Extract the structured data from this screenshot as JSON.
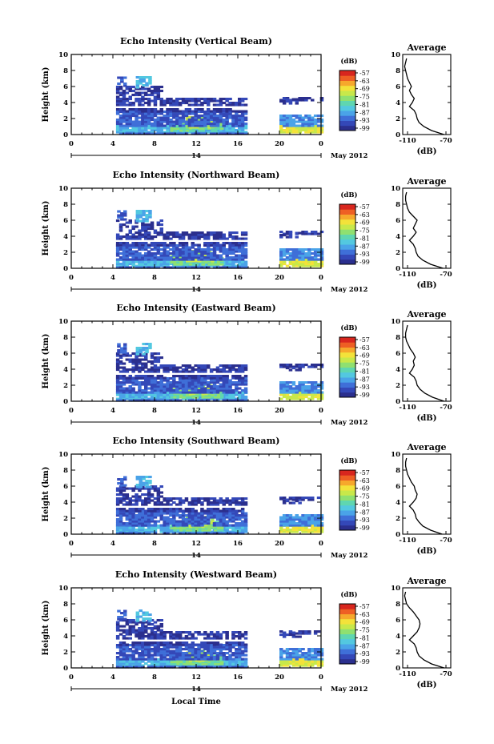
{
  "figure": {
    "x_axis_label": "Local Time",
    "date_label": "May 2012",
    "day_label": "14",
    "colorbar_unit": "(dB)",
    "average_title": "Average",
    "average_xlabel": "(dB)",
    "y_axis_label": "Height (km)"
  },
  "colors": {
    "scale": [
      "#2b2f8e",
      "#3448b8",
      "#3f6fd8",
      "#4aa3e8",
      "#53c8e0",
      "#5fd6b0",
      "#8fe070",
      "#c8e84a",
      "#f3e23a",
      "#f6a82c",
      "#ee5f24",
      "#d8261e"
    ]
  },
  "chart_data": [
    {
      "type": "heatmap",
      "title": "Echo Intensity (Vertical Beam)",
      "ylabel": "Height (km)",
      "xlim": [
        0,
        24
      ],
      "ylim": [
        0,
        10
      ],
      "x_ticks": [
        "0",
        "4",
        "8",
        "12",
        "16",
        "20",
        "0"
      ],
      "y_ticks": [
        "0",
        "2",
        "4",
        "6",
        "8",
        "10"
      ],
      "colorbar": {
        "ticks": [
          "-57",
          "-63",
          "-69",
          "-75",
          "-81",
          "-87",
          "-93",
          "-99"
        ]
      },
      "average": {
        "title": "Average",
        "xlabel": "(dB)",
        "x_ticks": [
          "-110",
          "-70"
        ],
        "xlim": [
          -115,
          -65
        ],
        "y_ticks": [
          "0",
          "2",
          "4",
          "6",
          "8",
          "10"
        ],
        "ylim": [
          0,
          10
        ],
        "heights": [
          0,
          0.5,
          1,
          1.5,
          2,
          2.5,
          3,
          3.5,
          4,
          4.5,
          5,
          5.5,
          6,
          6.5,
          7,
          7.5,
          8,
          8.5,
          9,
          9.5
        ],
        "values": [
          -72,
          -85,
          -93,
          -98,
          -100,
          -101,
          -103,
          -108,
          -105,
          -103,
          -106,
          -108,
          -106,
          -108,
          -110,
          -111,
          -112,
          -113,
          -112,
          -111
        ]
      }
    },
    {
      "type": "heatmap",
      "title": "Echo Intensity (Northward Beam)",
      "ylabel": "Height (km)",
      "xlim": [
        0,
        24
      ],
      "ylim": [
        0,
        10
      ],
      "x_ticks": [
        "0",
        "4",
        "8",
        "12",
        "16",
        "20",
        "0"
      ],
      "y_ticks": [
        "0",
        "2",
        "4",
        "6",
        "8",
        "10"
      ],
      "colorbar": {
        "ticks": [
          "-57",
          "-63",
          "-69",
          "-75",
          "-81",
          "-87",
          "-93",
          "-99"
        ]
      },
      "average": {
        "title": "Average",
        "xlabel": "(dB)",
        "x_ticks": [
          "-110",
          "-70"
        ],
        "xlim": [
          -115,
          -65
        ],
        "y_ticks": [
          "0",
          "2",
          "4",
          "6",
          "8",
          "10"
        ],
        "ylim": [
          0,
          10
        ],
        "heights": [
          0,
          0.5,
          1,
          1.5,
          2,
          2.5,
          3,
          3.5,
          4,
          4.5,
          5,
          5.5,
          6,
          6.5,
          7,
          7.5,
          8,
          8.5,
          9,
          9.5
        ],
        "values": [
          -73,
          -86,
          -94,
          -99,
          -101,
          -102,
          -104,
          -108,
          -104,
          -101,
          -104,
          -102,
          -100,
          -104,
          -108,
          -110,
          -111,
          -112,
          -112,
          -111
        ]
      }
    },
    {
      "type": "heatmap",
      "title": "Echo Intensity (Eastward Beam)",
      "ylabel": "Height (km)",
      "xlim": [
        0,
        24
      ],
      "ylim": [
        0,
        10
      ],
      "x_ticks": [
        "0",
        "4",
        "8",
        "12",
        "16",
        "20",
        "0"
      ],
      "y_ticks": [
        "0",
        "2",
        "4",
        "6",
        "8",
        "10"
      ],
      "colorbar": {
        "ticks": [
          "-57",
          "-63",
          "-69",
          "-75",
          "-81",
          "-87",
          "-93",
          "-99"
        ]
      },
      "average": {
        "title": "Average",
        "xlabel": "(dB)",
        "x_ticks": [
          "-110",
          "-70"
        ],
        "xlim": [
          -115,
          -65
        ],
        "y_ticks": [
          "0",
          "2",
          "4",
          "6",
          "8",
          "10"
        ],
        "ylim": [
          0,
          10
        ],
        "heights": [
          0,
          0.5,
          1,
          1.5,
          2,
          2.5,
          3,
          3.5,
          4,
          4.5,
          5,
          5.5,
          6,
          6.5,
          7,
          7.5,
          8,
          8.5,
          9,
          9.5
        ],
        "values": [
          -72,
          -84,
          -92,
          -97,
          -100,
          -101,
          -103,
          -108,
          -105,
          -103,
          -104,
          -102,
          -104,
          -107,
          -109,
          -111,
          -112,
          -112,
          -111,
          -110
        ]
      }
    },
    {
      "type": "heatmap",
      "title": "Echo Intensity (Southward Beam)",
      "ylabel": "Height (km)",
      "xlim": [
        0,
        24
      ],
      "ylim": [
        0,
        10
      ],
      "x_ticks": [
        "0",
        "4",
        "8",
        "12",
        "16",
        "20",
        "0"
      ],
      "y_ticks": [
        "0",
        "2",
        "4",
        "6",
        "8",
        "10"
      ],
      "colorbar": {
        "ticks": [
          "-57",
          "-63",
          "-69",
          "-75",
          "-81",
          "-87",
          "-93",
          "-99"
        ]
      },
      "average": {
        "title": "Average",
        "xlabel": "(dB)",
        "x_ticks": [
          "-110",
          "-70"
        ],
        "xlim": [
          -115,
          -65
        ],
        "y_ticks": [
          "0",
          "2",
          "4",
          "6",
          "8",
          "10"
        ],
        "ylim": [
          0,
          10
        ],
        "heights": [
          0,
          0.5,
          1,
          1.5,
          2,
          2.5,
          3,
          3.5,
          4,
          4.5,
          5,
          5.5,
          6,
          6.5,
          7,
          7.5,
          8,
          8.5,
          9,
          9.5
        ],
        "values": [
          -74,
          -86,
          -94,
          -98,
          -101,
          -102,
          -104,
          -108,
          -104,
          -101,
          -100,
          -102,
          -103,
          -106,
          -108,
          -110,
          -111,
          -112,
          -112,
          -111
        ]
      }
    },
    {
      "type": "heatmap",
      "title": "Echo Intensity (Westward Beam)",
      "ylabel": "Height (km)",
      "xlim": [
        0,
        24
      ],
      "ylim": [
        0,
        10
      ],
      "x_ticks": [
        "0",
        "4",
        "8",
        "12",
        "16",
        "20",
        "0"
      ],
      "y_ticks": [
        "0",
        "2",
        "4",
        "6",
        "8",
        "10"
      ],
      "colorbar": {
        "ticks": [
          "-57",
          "-63",
          "-69",
          "-75",
          "-81",
          "-87",
          "-93",
          "-99"
        ]
      },
      "average": {
        "title": "Average",
        "xlabel": "(dB)",
        "x_ticks": [
          "-110",
          "-70"
        ],
        "xlim": [
          -115,
          -65
        ],
        "y_ticks": [
          "0",
          "2",
          "4",
          "6",
          "8",
          "10"
        ],
        "ylim": [
          0,
          10
        ],
        "heights": [
          0,
          0.5,
          1,
          1.5,
          2,
          2.5,
          3,
          3.5,
          4,
          4.5,
          5,
          5.5,
          6,
          6.5,
          7,
          7.5,
          8,
          8.5,
          9,
          9.5
        ],
        "values": [
          -72,
          -85,
          -93,
          -98,
          -100,
          -101,
          -103,
          -108,
          -104,
          -100,
          -98,
          -97,
          -98,
          -101,
          -104,
          -108,
          -111,
          -112,
          -113,
          -112
        ]
      }
    }
  ]
}
